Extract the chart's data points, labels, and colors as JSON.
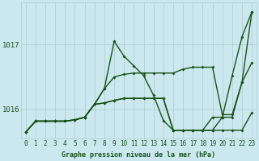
{
  "background_color": "#cce8ef",
  "grid_color": "#aacccc",
  "line_color_dark": "#1a5218",
  "xlabel": "Graphe pression niveau de la mer (hPa)",
  "xlim_min": -0.5,
  "xlim_max": 23.5,
  "ylim_min": 1015.55,
  "ylim_max": 1017.65,
  "yticks": [
    1016,
    1017
  ],
  "xticks": [
    0,
    1,
    2,
    3,
    4,
    5,
    6,
    7,
    8,
    9,
    10,
    11,
    12,
    13,
    14,
    15,
    16,
    17,
    18,
    19,
    20,
    21,
    22,
    23
  ],
  "series": [
    {
      "x": [
        0,
        1,
        2,
        3,
        4,
        5,
        6,
        7,
        8,
        9,
        10,
        11,
        12,
        13,
        14,
        15,
        16,
        17,
        18,
        19,
        20,
        21,
        22,
        23
      ],
      "y": [
        1015.65,
        1015.82,
        1015.82,
        1015.82,
        1015.82,
        1015.84,
        1015.88,
        1016.08,
        1016.32,
        1017.05,
        1016.82,
        1016.67,
        1016.52,
        1016.22,
        1015.83,
        1015.68,
        1015.68,
        1015.68,
        1015.68,
        1015.88,
        1015.88,
        1016.52,
        1017.12,
        1017.5
      ],
      "color": "#1a5218",
      "lw": 1.0
    },
    {
      "x": [
        0,
        1,
        2,
        3,
        4,
        5,
        6,
        7,
        8,
        9,
        10,
        11,
        12,
        13,
        14,
        15,
        16,
        17,
        18,
        19,
        20,
        21,
        22,
        23
      ],
      "y": [
        1015.65,
        1015.82,
        1015.82,
        1015.82,
        1015.82,
        1015.84,
        1015.88,
        1016.08,
        1016.32,
        1016.5,
        1016.54,
        1016.56,
        1016.56,
        1016.56,
        1016.56,
        1016.56,
        1016.62,
        1016.65,
        1016.65,
        1016.65,
        1015.92,
        1015.92,
        1016.42,
        1016.72
      ],
      "color": "#1a5218",
      "lw": 1.0
    },
    {
      "x": [
        0,
        1,
        2,
        3,
        4,
        5,
        6,
        7,
        8,
        9,
        10,
        11,
        12,
        13,
        14,
        15,
        16,
        17,
        18,
        19,
        20,
        21,
        22,
        23
      ],
      "y": [
        1015.65,
        1015.82,
        1015.82,
        1015.82,
        1015.82,
        1015.84,
        1015.88,
        1016.08,
        1016.1,
        1016.14,
        1016.17,
        1016.17,
        1016.17,
        1016.17,
        1016.17,
        1015.68,
        1015.68,
        1015.68,
        1015.68,
        1015.68,
        1015.68,
        1015.68,
        1015.68,
        1015.95
      ],
      "color": "#1a5218",
      "lw": 1.0
    },
    {
      "x": [
        0,
        1,
        2,
        3,
        4,
        5,
        6,
        7,
        8,
        9,
        10,
        11,
        12,
        13,
        14,
        15,
        16,
        17,
        18,
        19,
        20,
        21,
        22,
        23
      ],
      "y": [
        1015.65,
        1015.82,
        1015.82,
        1015.82,
        1015.82,
        1015.84,
        1015.88,
        1016.08,
        1016.1,
        1016.14,
        1016.17,
        1016.17,
        1016.17,
        1016.17,
        1016.17,
        1015.68,
        1015.68,
        1015.68,
        1015.68,
        1015.68,
        1015.88,
        1015.88,
        1016.42,
        1017.5
      ],
      "color": "#1a5218",
      "lw": 1.0
    }
  ],
  "marker_size": 2.0,
  "xlabel_fontsize": 6.0,
  "xlabel_fontweight": "bold",
  "tick_fontsize": 5.5,
  "ytick_fontsize": 6.5
}
